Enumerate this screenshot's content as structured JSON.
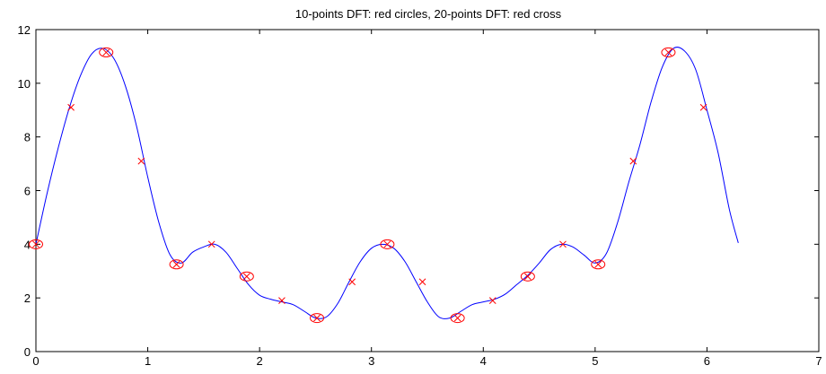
{
  "chart_data": {
    "type": "line",
    "title": "10-points DFT: red circles, 20-points DFT: red cross",
    "xlabel": "",
    "ylabel": "",
    "xlim": [
      0,
      7
    ],
    "ylim": [
      0,
      12
    ],
    "xticks": [
      0,
      1,
      2,
      3,
      4,
      5,
      6,
      7
    ],
    "yticks": [
      0,
      2,
      4,
      6,
      8,
      10,
      12
    ],
    "grid": false,
    "legend": "none",
    "series": [
      {
        "kind": "line",
        "color": "#0000ff",
        "x": [
          0.0,
          0.1,
          0.2,
          0.3,
          0.4,
          0.5,
          0.6,
          0.7,
          0.8,
          0.9,
          1.0,
          1.1,
          1.2,
          1.3,
          1.4,
          1.5,
          1.6,
          1.7,
          1.8,
          1.9,
          2.0,
          2.1,
          2.2,
          2.3,
          2.4,
          2.5,
          2.6,
          2.7,
          2.8,
          2.9,
          3.0,
          3.1,
          3.2,
          3.3,
          3.4,
          3.5,
          3.6,
          3.7,
          3.8,
          3.9,
          4.0,
          4.1,
          4.2,
          4.3,
          4.4,
          4.5,
          4.6,
          4.7,
          4.8,
          4.9,
          5.0,
          5.1,
          5.2,
          5.3,
          5.4,
          5.5,
          5.6,
          5.7,
          5.8,
          5.9,
          6.0,
          6.1,
          6.2,
          6.28
        ],
        "y": [
          4.0,
          5.9,
          7.6,
          9.1,
          10.3,
          11.1,
          11.3,
          10.9,
          9.9,
          8.4,
          6.5,
          4.8,
          3.6,
          3.3,
          3.7,
          3.9,
          4.0,
          3.7,
          3.1,
          2.5,
          2.1,
          1.95,
          1.85,
          1.75,
          1.5,
          1.25,
          1.3,
          1.8,
          2.6,
          3.35,
          3.85,
          4.0,
          3.85,
          3.35,
          2.6,
          1.85,
          1.3,
          1.25,
          1.5,
          1.75,
          1.85,
          1.95,
          2.15,
          2.5,
          2.85,
          3.3,
          3.8,
          4.0,
          3.9,
          3.6,
          3.3,
          3.65,
          4.8,
          6.3,
          7.7,
          9.3,
          10.6,
          11.3,
          11.2,
          10.5,
          9.0,
          7.4,
          5.3,
          4.05
        ]
      },
      {
        "kind": "markers",
        "marker": "circle",
        "color": "#ff0000",
        "x": [
          0.0,
          0.628,
          1.257,
          1.885,
          2.513,
          3.142,
          3.77,
          4.398,
          5.027,
          5.655
        ],
        "y": [
          4.0,
          11.15,
          3.25,
          2.8,
          1.25,
          4.0,
          1.25,
          2.8,
          3.25,
          11.15
        ]
      },
      {
        "kind": "markers",
        "marker": "cross",
        "color": "#ff0000",
        "x": [
          0.0,
          0.314,
          0.628,
          0.942,
          1.257,
          1.571,
          1.885,
          2.199,
          2.513,
          2.827,
          3.142,
          3.456,
          3.77,
          4.084,
          4.398,
          4.712,
          5.027,
          5.341,
          5.655,
          5.969
        ],
        "y": [
          4.0,
          9.1,
          11.15,
          7.1,
          3.25,
          4.0,
          2.8,
          1.9,
          1.25,
          2.6,
          4.0,
          2.6,
          1.25,
          1.9,
          2.8,
          4.0,
          3.25,
          7.1,
          11.15,
          9.1
        ]
      }
    ]
  }
}
